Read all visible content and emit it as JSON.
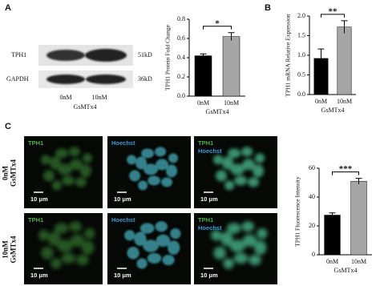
{
  "panel_labels": [
    "A",
    "B",
    "C"
  ],
  "blot": {
    "rows": [
      "TPH1",
      "GAPDH"
    ],
    "sizes": [
      "51kD",
      "36kD"
    ],
    "lanes": [
      "0nM",
      "10nM"
    ],
    "treatment": "GsMTx4"
  },
  "micrographs": {
    "rows": [
      {
        "dose": "0nM",
        "treatment": "GsMTx4"
      },
      {
        "dose": "10nM",
        "treatment": "GsMTx4"
      }
    ],
    "channels": [
      "TPH1",
      "Hoechst"
    ],
    "scale_bar": "10 μm"
  },
  "chart_data": [
    {
      "type": "bar",
      "ylabel": "TPH1 Protein Fold Change",
      "xlabel": "GsMTx4",
      "categories": [
        "0nM",
        "10nM"
      ],
      "values": [
        0.42,
        0.62
      ],
      "errors": [
        0.02,
        0.04
      ],
      "colors": [
        "#000000",
        "#a6a6a6"
      ],
      "significance": "*",
      "ylim": [
        0,
        0.8
      ],
      "yticks": [
        {
          "value": 0,
          "label": "0.0"
        },
        0.2,
        0.4,
        0.6,
        0.8
      ]
    },
    {
      "type": "bar",
      "ylabel": "TPH1 mRNA Relative Expression",
      "xlabel": "GsMTx4",
      "categories": [
        "0nM",
        "10nM"
      ],
      "values": [
        0.92,
        1.72
      ],
      "errors": [
        0.24,
        0.16
      ],
      "colors": [
        "#000000",
        "#a6a6a6"
      ],
      "significance": "**",
      "ylim": [
        0,
        2
      ],
      "yticks": [
        {
          "value": 0,
          "label": "0.0"
        },
        0.5,
        {
          "value": 1,
          "label": "1.0"
        },
        1.5,
        {
          "value": 2,
          "label": "2.0"
        }
      ]
    },
    {
      "type": "bar",
      "ylabel": "TPH1 Fluorescence Intensity",
      "xlabel": "GsMTx4",
      "categories": [
        "0nM",
        "10nM"
      ],
      "values": [
        27.5,
        51
      ],
      "errors": [
        1.5,
        2
      ],
      "colors": [
        "#000000",
        "#a6a6a6"
      ],
      "significance": "***",
      "ylim": [
        0,
        60
      ],
      "yticks": [
        0,
        20,
        40,
        60
      ]
    }
  ]
}
